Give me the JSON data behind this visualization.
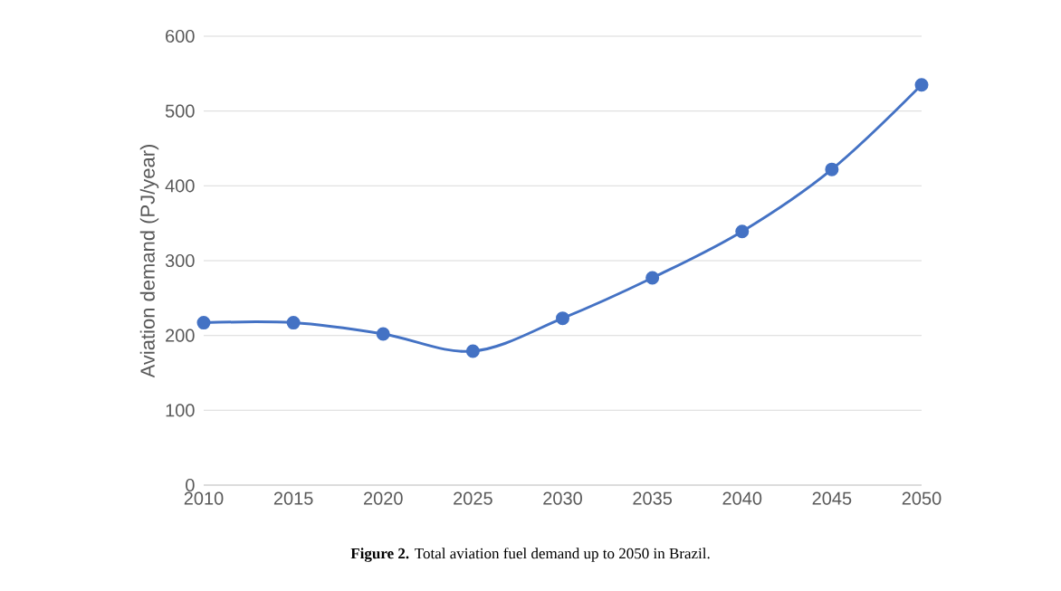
{
  "chart_data": {
    "type": "line",
    "ylabel": "Aviation demand (PJ/year)",
    "x": [
      2010,
      2015,
      2020,
      2025,
      2030,
      2035,
      2040,
      2045,
      2050
    ],
    "series": [
      {
        "color": "#4472c4",
        "values": [
          217,
          217,
          202,
          179,
          223,
          277,
          339,
          422,
          535
        ]
      }
    ],
    "xlim": [
      2010,
      2050
    ],
    "xticks": [
      2010,
      2015,
      2020,
      2025,
      2030,
      2035,
      2040,
      2045,
      2050
    ],
    "ylim": [
      0,
      600
    ],
    "yticks": [
      0,
      100,
      200,
      300,
      400,
      500,
      600
    ],
    "grid": "y",
    "marker": "circle",
    "line_style": "solid",
    "annotations": [
      "**Figure 2.** Total aviation fuel demand up to 2050 in Brazil."
    ]
  }
}
